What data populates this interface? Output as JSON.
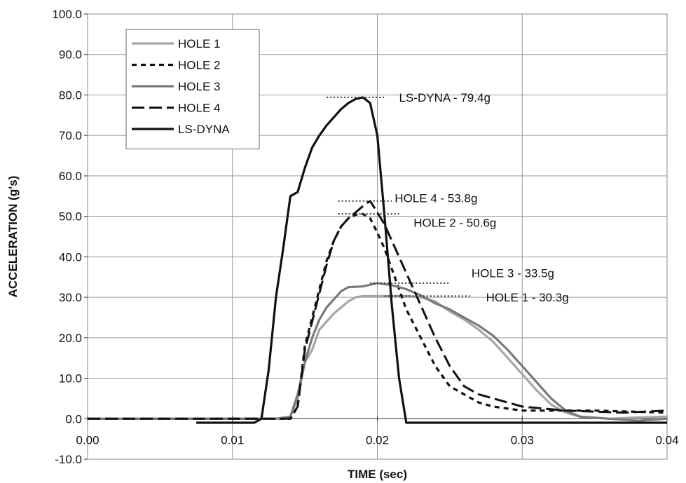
{
  "chart_data": {
    "type": "line",
    "xlabel": "TIME (sec)",
    "ylabel": "ACCELERATION (g's)",
    "xlim": [
      0,
      0.04
    ],
    "ylim": [
      -10,
      100
    ],
    "x_ticks": [
      "0.00",
      "0.01",
      "0.02",
      "0.03",
      "0.04"
    ],
    "x_tick_values": [
      0,
      0.01,
      0.02,
      0.03,
      0.04
    ],
    "y_ticks": [
      "-10.0",
      "0.0",
      "10.0",
      "20.0",
      "30.0",
      "40.0",
      "50.0",
      "60.0",
      "70.0",
      "80.0",
      "90.0",
      "100.0"
    ],
    "y_tick_values": [
      -10,
      0,
      10,
      20,
      30,
      40,
      50,
      60,
      70,
      80,
      90,
      100
    ],
    "grid": true,
    "legend_position": "top-left",
    "series": [
      {
        "name": "HOLE 1",
        "color": "#a6a6a6",
        "dash": "solid",
        "points": [
          [
            0,
            0
          ],
          [
            0.013,
            0
          ],
          [
            0.014,
            0.5
          ],
          [
            0.0145,
            5
          ],
          [
            0.015,
            14
          ],
          [
            0.0155,
            17
          ],
          [
            0.016,
            22
          ],
          [
            0.0165,
            24
          ],
          [
            0.017,
            26
          ],
          [
            0.0175,
            27.5
          ],
          [
            0.018,
            29
          ],
          [
            0.0185,
            30
          ],
          [
            0.019,
            30.3
          ],
          [
            0.021,
            30.3
          ],
          [
            0.022,
            30.3
          ],
          [
            0.023,
            30
          ],
          [
            0.024,
            29
          ],
          [
            0.025,
            26.5
          ],
          [
            0.026,
            24.5
          ],
          [
            0.027,
            22
          ],
          [
            0.028,
            19
          ],
          [
            0.029,
            15
          ],
          [
            0.03,
            11
          ],
          [
            0.031,
            7
          ],
          [
            0.032,
            3.5
          ],
          [
            0.033,
            1.5
          ],
          [
            0.034,
            0.5
          ],
          [
            0.036,
            0
          ],
          [
            0.038,
            0.3
          ],
          [
            0.04,
            0.5
          ]
        ]
      },
      {
        "name": "HOLE 2",
        "color": "#111111",
        "dash": "dashed",
        "points": [
          [
            0,
            0
          ],
          [
            0.014,
            0
          ],
          [
            0.0145,
            3
          ],
          [
            0.015,
            18
          ],
          [
            0.0155,
            25
          ],
          [
            0.016,
            32
          ],
          [
            0.0165,
            39
          ],
          [
            0.017,
            44
          ],
          [
            0.0175,
            47.5
          ],
          [
            0.018,
            49.5
          ],
          [
            0.0185,
            50.4
          ],
          [
            0.019,
            50.6
          ],
          [
            0.0195,
            49.5
          ],
          [
            0.02,
            46
          ],
          [
            0.0205,
            42
          ],
          [
            0.021,
            37
          ],
          [
            0.0215,
            32
          ],
          [
            0.022,
            27
          ],
          [
            0.023,
            20
          ],
          [
            0.024,
            13
          ],
          [
            0.025,
            8
          ],
          [
            0.026,
            6
          ],
          [
            0.027,
            4
          ],
          [
            0.028,
            3
          ],
          [
            0.03,
            2
          ],
          [
            0.032,
            2
          ],
          [
            0.035,
            2
          ],
          [
            0.04,
            1.5
          ]
        ]
      },
      {
        "name": "HOLE 3",
        "color": "#7a7a7a",
        "dash": "solid",
        "points": [
          [
            0,
            0
          ],
          [
            0.013,
            0
          ],
          [
            0.014,
            0.5
          ],
          [
            0.0145,
            6
          ],
          [
            0.015,
            14
          ],
          [
            0.0155,
            20
          ],
          [
            0.016,
            24.5
          ],
          [
            0.0165,
            27.5
          ],
          [
            0.017,
            29.5
          ],
          [
            0.0175,
            31.5
          ],
          [
            0.018,
            32.5
          ],
          [
            0.019,
            32.7
          ],
          [
            0.02,
            33.5
          ],
          [
            0.021,
            33
          ],
          [
            0.022,
            32
          ],
          [
            0.023,
            30.5
          ],
          [
            0.024,
            28.5
          ],
          [
            0.025,
            27
          ],
          [
            0.026,
            25
          ],
          [
            0.027,
            23
          ],
          [
            0.028,
            20.5
          ],
          [
            0.029,
            17
          ],
          [
            0.03,
            13
          ],
          [
            0.031,
            9
          ],
          [
            0.032,
            5
          ],
          [
            0.033,
            2
          ],
          [
            0.034,
            0.5
          ],
          [
            0.036,
            0
          ],
          [
            0.038,
            -0.5
          ],
          [
            0.04,
            0
          ]
        ]
      },
      {
        "name": "HOLE 4",
        "color": "#111111",
        "dash": "longdash",
        "points": [
          [
            0,
            0
          ],
          [
            0.014,
            0
          ],
          [
            0.0145,
            3
          ],
          [
            0.015,
            17
          ],
          [
            0.0155,
            24
          ],
          [
            0.016,
            31
          ],
          [
            0.0165,
            38
          ],
          [
            0.017,
            44
          ],
          [
            0.0175,
            47.5
          ],
          [
            0.018,
            49.5
          ],
          [
            0.0185,
            51
          ],
          [
            0.019,
            52.5
          ],
          [
            0.0195,
            53.8
          ],
          [
            0.02,
            51
          ],
          [
            0.0205,
            48
          ],
          [
            0.021,
            44
          ],
          [
            0.0215,
            40
          ],
          [
            0.022,
            36
          ],
          [
            0.023,
            28
          ],
          [
            0.024,
            20
          ],
          [
            0.025,
            13
          ],
          [
            0.026,
            8
          ],
          [
            0.027,
            6
          ],
          [
            0.028,
            5
          ],
          [
            0.029,
            4
          ],
          [
            0.03,
            3
          ],
          [
            0.033,
            2
          ],
          [
            0.037,
            1.5
          ],
          [
            0.04,
            2
          ]
        ]
      },
      {
        "name": "LS-DYNA",
        "color": "#111111",
        "dash": "solid",
        "points": [
          [
            0.0075,
            -1
          ],
          [
            0.0115,
            -1
          ],
          [
            0.012,
            0
          ],
          [
            0.0125,
            12
          ],
          [
            0.013,
            30
          ],
          [
            0.0135,
            42
          ],
          [
            0.014,
            55
          ],
          [
            0.0145,
            56
          ],
          [
            0.015,
            62
          ],
          [
            0.0155,
            67
          ],
          [
            0.016,
            70
          ],
          [
            0.0165,
            72.5
          ],
          [
            0.017,
            74.5
          ],
          [
            0.0175,
            76.5
          ],
          [
            0.018,
            78
          ],
          [
            0.0185,
            79
          ],
          [
            0.019,
            79.4
          ],
          [
            0.0195,
            78
          ],
          [
            0.02,
            70
          ],
          [
            0.0205,
            50
          ],
          [
            0.021,
            28
          ],
          [
            0.0215,
            10
          ],
          [
            0.022,
            -1
          ],
          [
            0.04,
            -1
          ]
        ]
      }
    ],
    "annotations": [
      {
        "text": "LS-DYNA - 79.4g",
        "x": 0.019,
        "y": 79.4,
        "line_from": 0.0165,
        "line_to": 0.0205,
        "text_x": 0.0215,
        "text_y": 79.4
      },
      {
        "text": "HOLE 4 - 53.8g",
        "x": 0.0195,
        "y": 53.8,
        "line_from": 0.0173,
        "line_to": 0.021,
        "text_x": 0.0212,
        "text_y": 54.5
      },
      {
        "text": "HOLE 2 - 50.6g",
        "x": 0.019,
        "y": 50.6,
        "line_from": 0.0173,
        "line_to": 0.0215,
        "text_x": 0.0225,
        "text_y": 48.5
      },
      {
        "text": "HOLE 3 - 33.5g",
        "x": 0.02,
        "y": 33.5,
        "line_from": 0.0195,
        "line_to": 0.025,
        "text_x": 0.0265,
        "text_y": 36
      },
      {
        "text": "HOLE 1 - 30.3g",
        "x": 0.021,
        "y": 30.3,
        "line_from": 0.0205,
        "line_to": 0.0265,
        "text_x": 0.0275,
        "text_y": 30
      }
    ]
  }
}
